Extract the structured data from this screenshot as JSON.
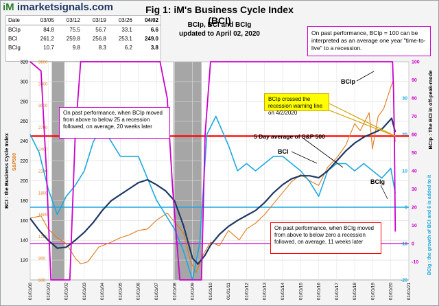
{
  "header": {
    "logo_prefix": "iM",
    "logo_text": "imarketsignals.com",
    "title": "Fig 1:  iM's Business Cycle Index (BCI)",
    "subtitle_line1": "BCIp, BCI and BCIg",
    "subtitle_line2": "updated to April 02, 2020"
  },
  "summary_table": {
    "headers": [
      "Date",
      "03/05",
      "03/12",
      "03/19",
      "03/26",
      "04/02"
    ],
    "rows": [
      {
        "label": "BCIp",
        "values": [
          "84.8",
          "75.5",
          "56.7",
          "33.1",
          "6.6"
        ]
      },
      {
        "label": "BCI",
        "values": [
          "261.2",
          "259.8",
          "256.8",
          "253.1",
          "249.0"
        ]
      },
      {
        "label": "BCIg",
        "values": [
          "10.7",
          "9.8",
          "8.3",
          "6.2",
          "3.8"
        ]
      }
    ]
  },
  "notes": {
    "top_right": "On past performance, BCIp = 100  can be interpreted as an average one year \"time-to-live\" to a recession.",
    "bcip_note": "On past performance,  when BCIp moved from above to below 25 a recession followed, on average, 20 weeks later",
    "bcig_note": "On past performance,  when BCIg moved from above to below zero a recession followed, on average, 11 weeks later",
    "callout": "BCIp crossed the recession warning line on 4/2/2020",
    "sp_label": "5 Day average of  S&P 500",
    "bci_label": "BCI",
    "bcip_label": "BCIp",
    "bcig_label": "BCIg"
  },
  "colors": {
    "bci": "#1f3864",
    "bcip": "#cc00cc",
    "bcig": "#1ba8e0",
    "sp500": "#e07a1a",
    "recession": "#a6a6a6",
    "warning": "#ff0000",
    "callout_bg": "#ffff00"
  },
  "chart_data": {
    "type": "line",
    "x_ticks": [
      "01/01/00",
      "01/01/01",
      "01/01/02",
      "01/01/03",
      "01/01/04",
      "01/01/05",
      "01/01/06",
      "01/01/07",
      "01/01/08",
      "01/01/09",
      "01/01/10",
      "01/01/11",
      "01/01/12",
      "01/01/13",
      "01/01/14",
      "01/01/15",
      "01/01/16",
      "01/01/17",
      "01/01/18",
      "01/01/19",
      "01/01/20",
      "01/01/21"
    ],
    "left_axis": {
      "label": "BCI : the Business Cycle Index",
      "ticks": [
        120,
        140,
        160,
        180,
        200,
        220,
        240,
        260,
        280,
        300,
        320
      ],
      "ylim": [
        100,
        320
      ]
    },
    "sp_axis": {
      "label": "S&P500",
      "ticks": [
        600,
        900,
        1200,
        1500,
        1800,
        2100,
        2400,
        2700,
        3000,
        3300,
        3600
      ],
      "ylim": [
        600,
        3600
      ]
    },
    "right_axis_top": {
      "label": "BCIp : The BCI in off-peak-mode",
      "ticks": [
        -10,
        0,
        10,
        20,
        30,
        40,
        50,
        60,
        70,
        80,
        90,
        100
      ],
      "ylim": [
        -20,
        100
      ]
    },
    "right_axis_bottom": {
      "label": "BCIg : the growth of BCI and 6 is added to it",
      "ticks": [
        -20,
        -10,
        0,
        10,
        20,
        30
      ],
      "ylim": [
        -20,
        40
      ]
    },
    "recessions": [
      [
        2001.2,
        2001.9
      ],
      [
        2007.95,
        2009.5
      ]
    ],
    "warning_lines": {
      "bci": 245,
      "bcig": 0
    },
    "series": [
      {
        "name": "BCI",
        "points": [
          [
            2000,
            162
          ],
          [
            2000.5,
            150
          ],
          [
            2001,
            140
          ],
          [
            2001.5,
            132
          ],
          [
            2002,
            133
          ],
          [
            2002.5,
            140
          ],
          [
            2003,
            148
          ],
          [
            2003.5,
            158
          ],
          [
            2004,
            170
          ],
          [
            2004.5,
            180
          ],
          [
            2005,
            186
          ],
          [
            2005.5,
            192
          ],
          [
            2006,
            198
          ],
          [
            2006.5,
            201
          ],
          [
            2007,
            196
          ],
          [
            2007.5,
            190
          ],
          [
            2008,
            180
          ],
          [
            2008.5,
            155
          ],
          [
            2009,
            122
          ],
          [
            2009.3,
            116
          ],
          [
            2009.7,
            125
          ],
          [
            2010,
            135
          ],
          [
            2010.5,
            146
          ],
          [
            2011,
            154
          ],
          [
            2011.5,
            160
          ],
          [
            2012,
            165
          ],
          [
            2012.5,
            170
          ],
          [
            2013,
            178
          ],
          [
            2013.5,
            188
          ],
          [
            2014,
            196
          ],
          [
            2014.5,
            202
          ],
          [
            2015,
            205
          ],
          [
            2015.5,
            205
          ],
          [
            2016,
            203
          ],
          [
            2016.5,
            210
          ],
          [
            2017,
            220
          ],
          [
            2017.5,
            230
          ],
          [
            2018,
            238
          ],
          [
            2018.5,
            244
          ],
          [
            2019,
            248
          ],
          [
            2019.5,
            252
          ],
          [
            2019.9,
            260
          ],
          [
            2020.05,
            263
          ],
          [
            2020.25,
            249
          ]
        ]
      },
      {
        "name": "BCIp",
        "points": [
          [
            2000,
            100
          ],
          [
            2000.6,
            95
          ],
          [
            2000.9,
            40
          ],
          [
            2001.15,
            -20
          ],
          [
            2002.2,
            -20
          ],
          [
            2002.5,
            60
          ],
          [
            2002.8,
            100
          ],
          [
            2007.2,
            100
          ],
          [
            2007.6,
            80
          ],
          [
            2007.9,
            30
          ],
          [
            2008.3,
            -20
          ],
          [
            2009.5,
            -20
          ],
          [
            2009.7,
            60
          ],
          [
            2010,
            100
          ],
          [
            2020.1,
            100
          ],
          [
            2020.15,
            84.8
          ],
          [
            2020.2,
            56.7
          ],
          [
            2020.25,
            6.6
          ]
        ]
      },
      {
        "name": "BCIg",
        "points": [
          [
            2000,
            20
          ],
          [
            2000.5,
            15
          ],
          [
            2001,
            5
          ],
          [
            2001.5,
            -2
          ],
          [
            2002,
            3
          ],
          [
            2002.5,
            6
          ],
          [
            2003,
            10
          ],
          [
            2003.5,
            18
          ],
          [
            2004,
            22
          ],
          [
            2004.5,
            18
          ],
          [
            2005,
            14
          ],
          [
            2005.5,
            14
          ],
          [
            2006,
            14
          ],
          [
            2006.5,
            8
          ],
          [
            2007,
            2
          ],
          [
            2007.5,
            -2
          ],
          [
            2008,
            -6
          ],
          [
            2008.5,
            -12
          ],
          [
            2009,
            -20
          ],
          [
            2009.4,
            -10
          ],
          [
            2009.8,
            20
          ],
          [
            2010.3,
            25
          ],
          [
            2011,
            17
          ],
          [
            2011.5,
            10
          ],
          [
            2012,
            12
          ],
          [
            2012.5,
            10
          ],
          [
            2013,
            12
          ],
          [
            2013.5,
            14
          ],
          [
            2014,
            14
          ],
          [
            2014.5,
            12
          ],
          [
            2015,
            10
          ],
          [
            2015.5,
            7
          ],
          [
            2016,
            3
          ],
          [
            2016.5,
            10
          ],
          [
            2017,
            12
          ],
          [
            2017.5,
            12
          ],
          [
            2018,
            10
          ],
          [
            2018.5,
            12
          ],
          [
            2019,
            10
          ],
          [
            2019.5,
            8
          ],
          [
            2020,
            10.7
          ],
          [
            2020.25,
            3.8
          ]
        ]
      },
      {
        "name": "S&P 500",
        "points": [
          [
            2000,
            1450
          ],
          [
            2000.6,
            1480
          ],
          [
            2001,
            1300
          ],
          [
            2001.5,
            1180
          ],
          [
            2002,
            1100
          ],
          [
            2002.5,
            900
          ],
          [
            2002.8,
            820
          ],
          [
            2003.2,
            850
          ],
          [
            2003.8,
            1050
          ],
          [
            2004.5,
            1120
          ],
          [
            2005,
            1180
          ],
          [
            2005.5,
            1220
          ],
          [
            2006,
            1280
          ],
          [
            2006.5,
            1300
          ],
          [
            2007,
            1420
          ],
          [
            2007.6,
            1520
          ],
          [
            2008,
            1400
          ],
          [
            2008.5,
            1250
          ],
          [
            2008.9,
            850
          ],
          [
            2009.2,
            700
          ],
          [
            2009.6,
            950
          ],
          [
            2010,
            1120
          ],
          [
            2010.5,
            1070
          ],
          [
            2011,
            1280
          ],
          [
            2011.6,
            1150
          ],
          [
            2012,
            1300
          ],
          [
            2012.5,
            1380
          ],
          [
            2013,
            1500
          ],
          [
            2013.5,
            1650
          ],
          [
            2014,
            1800
          ],
          [
            2014.5,
            1950
          ],
          [
            2015,
            2050
          ],
          [
            2015.6,
            1950
          ],
          [
            2016,
            1900
          ],
          [
            2016.5,
            2150
          ],
          [
            2017,
            2280
          ],
          [
            2017.5,
            2450
          ],
          [
            2018,
            2750
          ],
          [
            2018.3,
            2650
          ],
          [
            2018.8,
            2900
          ],
          [
            2018.98,
            2400
          ],
          [
            2019.3,
            2850
          ],
          [
            2019.6,
            2950
          ],
          [
            2020,
            3250
          ],
          [
            2020.15,
            3350
          ],
          [
            2020.2,
            2650
          ],
          [
            2020.25,
            2500
          ]
        ]
      }
    ]
  }
}
